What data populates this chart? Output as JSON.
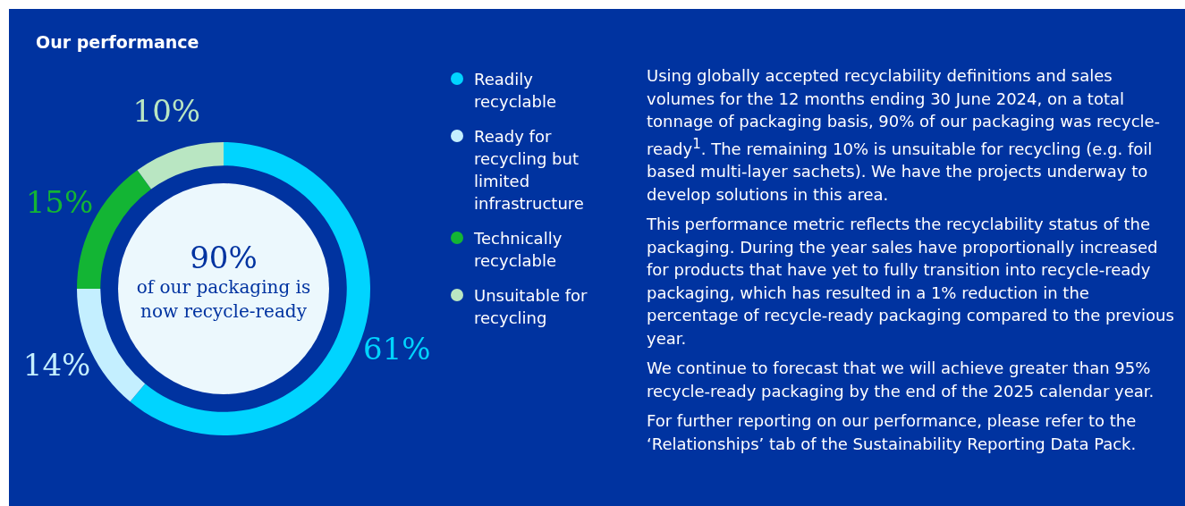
{
  "chart_data": {
    "type": "donut",
    "title": "Our performance",
    "categories": [
      "Readily recyclable",
      "Ready for recycling but limited infrastructure",
      "Technically recyclable",
      "Unsuitable for recycling"
    ],
    "values": [
      61,
      14,
      15,
      10
    ],
    "colors": [
      "#00d4ff",
      "#c4efff",
      "#13b534",
      "#b9e6c2"
    ],
    "value_labels": [
      "61%",
      "14%",
      "15%",
      "10%"
    ],
    "legend": "right",
    "annotations": [
      "90%",
      "of our packaging is now recycle-ready",
      "Using globally accepted recyclability definitions and sales volumes for the 12 months ending 30 June 2024, on a total tonnage of packaging basis, 90% of our packaging was recycle-ready$^{1}$. The remaining 10% is unsuitable for recycling (e.g. foil based multi-layer sachets). We have the projects underway to develop solutions in this area.",
      "This performance metric reflects the recyclability status of the packaging. During the year sales have proportionally increased for products that have yet to fully transition into recycle-ready packaging, which has resulted in a 1% reduction in the percentage of recycle-ready packaging compared to the previous year.",
      "We continue to forecast that we will achieve greater than 95% recycle-ready packaging by the end of the 2025 calendar year.",
      "For further reporting on our performance, please refer to the ‘Relationships’ tab of the Sustainability Reporting Data Pack."
    ]
  }
}
